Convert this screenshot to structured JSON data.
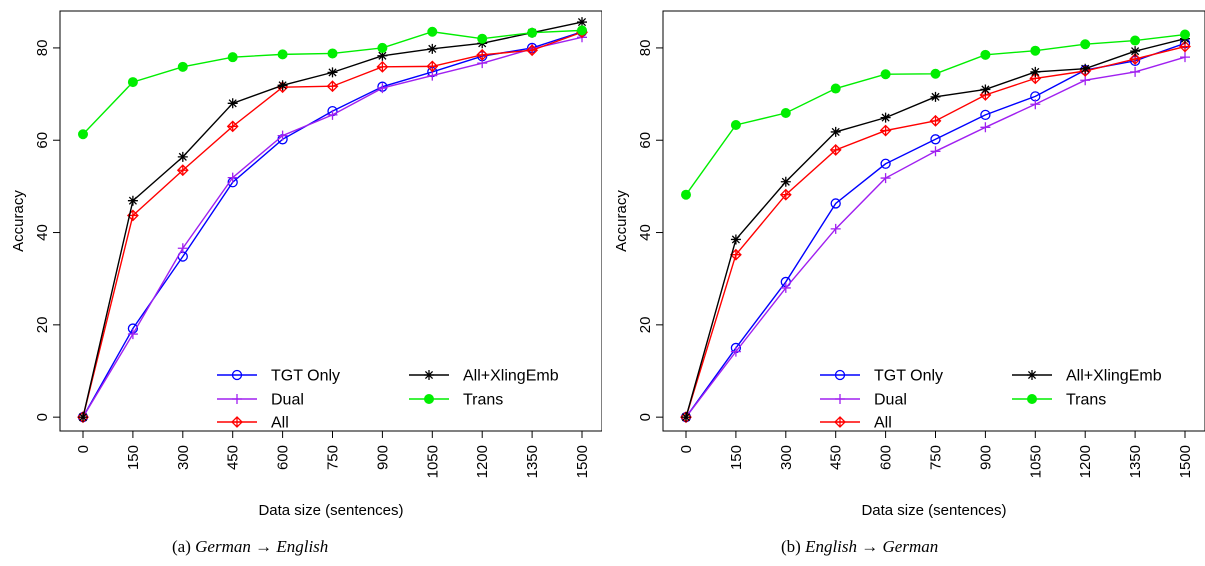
{
  "chart_data": [
    {
      "type": "line",
      "caption": {
        "label": "(a)",
        "src": "German",
        "arrow": "→",
        "tgt": "English"
      },
      "xlabel": "Data size (sentences)",
      "ylabel": "Accuracy",
      "categories": [
        "0",
        "150",
        "300",
        "450",
        "600",
        "750",
        "900",
        "1050",
        "1200",
        "1350",
        "1500"
      ],
      "ylim": [
        -3,
        88
      ],
      "yticks": [
        "0",
        "20",
        "40",
        "60",
        "80"
      ],
      "legend_position": "bottom-right",
      "series": [
        {
          "name": "TGT Only",
          "color": "#0000ff",
          "marker": "circle",
          "values": [
            0,
            19.2,
            34.8,
            50.9,
            60.2,
            66.3,
            71.6,
            74.8,
            78.2,
            80.0,
            83.5
          ]
        },
        {
          "name": "Dual",
          "color": "#a020f0",
          "marker": "plus",
          "values": [
            0,
            18.0,
            36.6,
            51.9,
            61.0,
            65.5,
            71.3,
            74.0,
            76.7,
            79.8,
            82.3
          ]
        },
        {
          "name": "All",
          "color": "#ff0000",
          "marker": "diamond-plus",
          "values": [
            0,
            43.7,
            53.5,
            63.0,
            71.5,
            71.7,
            75.9,
            76.0,
            78.5,
            79.5,
            83.4
          ]
        },
        {
          "name": "All+XlingEmb",
          "color": "#000000",
          "marker": "asterisk",
          "values": [
            0,
            46.9,
            56.4,
            68.0,
            71.9,
            74.7,
            78.3,
            79.8,
            81.0,
            83.3,
            85.6
          ]
        },
        {
          "name": "Trans",
          "color": "#00ee00",
          "marker": "filled-circle",
          "values": [
            61.3,
            72.6,
            75.9,
            78.0,
            78.6,
            78.8,
            80.0,
            83.5,
            82.0,
            83.3,
            83.8
          ]
        }
      ]
    },
    {
      "type": "line",
      "caption": {
        "label": "(b)",
        "src": "English",
        "arrow": "→",
        "tgt": "German"
      },
      "xlabel": "Data size (sentences)",
      "ylabel": "Accuracy",
      "categories": [
        "0",
        "150",
        "300",
        "450",
        "600",
        "750",
        "900",
        "1050",
        "1200",
        "1350",
        "1500"
      ],
      "ylim": [
        -3,
        88
      ],
      "yticks": [
        "0",
        "20",
        "40",
        "60",
        "80"
      ],
      "legend_position": "bottom-right",
      "series": [
        {
          "name": "TGT Only",
          "color": "#0000ff",
          "marker": "circle",
          "values": [
            0,
            15.0,
            29.3,
            46.3,
            54.9,
            60.2,
            65.5,
            69.5,
            75.2,
            77.2,
            81.0
          ]
        },
        {
          "name": "Dual",
          "color": "#a020f0",
          "marker": "plus",
          "values": [
            0,
            14.2,
            28.0,
            40.8,
            51.8,
            57.6,
            62.8,
            67.8,
            73.0,
            74.8,
            78.0
          ]
        },
        {
          "name": "All",
          "color": "#ff0000",
          "marker": "diamond-plus",
          "values": [
            0,
            35.2,
            48.2,
            57.9,
            62.1,
            64.2,
            69.8,
            73.4,
            75.0,
            77.6,
            80.3
          ]
        },
        {
          "name": "All+XlingEmb",
          "color": "#000000",
          "marker": "asterisk",
          "values": [
            0,
            38.5,
            51.0,
            61.8,
            64.9,
            69.4,
            71.0,
            74.8,
            75.5,
            79.3,
            82.0
          ]
        },
        {
          "name": "Trans",
          "color": "#00ee00",
          "marker": "filled-circle",
          "values": [
            48.2,
            63.3,
            65.9,
            71.2,
            74.3,
            74.4,
            78.5,
            79.4,
            80.8,
            81.6,
            82.9
          ]
        }
      ]
    }
  ]
}
